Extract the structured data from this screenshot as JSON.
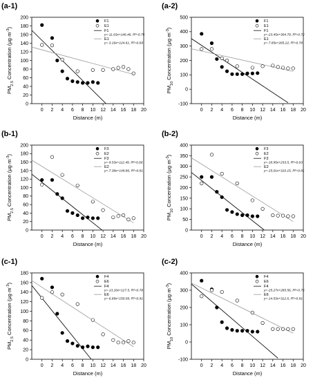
{
  "chart_data": [
    {
      "panel": "(a-1)",
      "type": "scatter",
      "xlabel": "Distance (m)",
      "ylabel": "PM2.5 Concentration (μg·m⁻³)",
      "ylabel_main": "PM",
      "ylabel_sub": "2.5",
      "ylabel_rest": " Concentration (μg·m",
      "ylabel_sup": "-3",
      "ylabel_end": ")",
      "xlim": [
        -2,
        20
      ],
      "ylim": [
        0,
        200
      ],
      "xticks": [
        0,
        2,
        4,
        6,
        8,
        10,
        12,
        14,
        16,
        18,
        20
      ],
      "yticks": [
        0,
        20,
        40,
        60,
        80,
        100,
        120,
        140,
        160,
        180,
        200
      ],
      "series": [
        {
          "name": "F1",
          "marker": "filled",
          "x": [
            0,
            2,
            3,
            4,
            5,
            6,
            7,
            8,
            9,
            10,
            11
          ],
          "y": [
            182,
            152,
            100,
            75,
            58,
            52,
            50,
            48,
            48,
            50,
            48
          ]
        },
        {
          "name": "E1",
          "marker": "open",
          "x": [
            0,
            2,
            4,
            7,
            10,
            12,
            14,
            15,
            16,
            17,
            18
          ],
          "y": [
            136,
            135,
            102,
            75,
            78,
            78,
            80,
            83,
            85,
            80,
            70
          ]
        }
      ],
      "fits": [
        {
          "name": "F1",
          "style": "solid",
          "equation": "y=-11.63x+146.46, R²=0.75",
          "slope": -11.63,
          "intercept": 146.46,
          "x_range": [
            -2,
            12.6
          ]
        },
        {
          "name": "E1",
          "style": "gray",
          "equation": "y=-3.16x+124.61, R²=0.69",
          "slope": -3.16,
          "intercept": 124.61,
          "x_range": [
            -2,
            18
          ]
        }
      ]
    },
    {
      "panel": "(a-2)",
      "type": "scatter",
      "xlabel": "Distance (m)",
      "ylabel": "PM10 Concentration (μg·m⁻³)",
      "ylabel_main": "PM",
      "ylabel_sub": "10",
      "ylabel_rest": " Concentration (μg·m",
      "ylabel_sup": "-3",
      "ylabel_end": ")",
      "xlim": [
        -2,
        20
      ],
      "ylim": [
        -100,
        500
      ],
      "xticks": [
        0,
        2,
        4,
        6,
        8,
        10,
        12,
        14,
        16,
        18,
        20
      ],
      "yticks": [
        -100,
        0,
        100,
        200,
        300,
        400,
        500
      ],
      "series": [
        {
          "name": "F1",
          "marker": "filled",
          "x": [
            0,
            2,
            3,
            4,
            5,
            6,
            7,
            8,
            9,
            10,
            11
          ],
          "y": [
            385,
            320,
            210,
            155,
            125,
            105,
            105,
            105,
            110,
            110,
            112
          ]
        },
        {
          "name": "E1",
          "marker": "open",
          "x": [
            0,
            2,
            4,
            5,
            7,
            10,
            12,
            14,
            15,
            16,
            17,
            18
          ],
          "y": [
            280,
            280,
            215,
            200,
            160,
            150,
            160,
            165,
            155,
            150,
            145,
            145
          ]
        }
      ],
      "fits": [
        {
          "name": "F1",
          "style": "solid",
          "equation": "y=-23.45x+304.79, R²=0.72",
          "slope": -23.45,
          "intercept": 304.79,
          "x_range": [
            -2,
            17
          ]
        },
        {
          "name": "E1",
          "style": "gray",
          "equation": "y=-7.85x+265.22, R²=0.78",
          "slope": -7.85,
          "intercept": 265.22,
          "x_range": [
            -2,
            18
          ]
        }
      ]
    },
    {
      "panel": "(b-1)",
      "type": "scatter",
      "xlabel": "Distance (m)",
      "ylabel": "PM2.5 Concentration (μg·m⁻³)",
      "ylabel_main": "PM",
      "ylabel_sub": "2.5",
      "ylabel_rest": " Concentration (μg·m",
      "ylabel_sup": "-3",
      "ylabel_end": ")",
      "xlim": [
        -2,
        20
      ],
      "ylim": [
        0,
        200
      ],
      "xticks": [
        0,
        2,
        4,
        6,
        8,
        10,
        12,
        14,
        16,
        18,
        20
      ],
      "yticks": [
        0,
        20,
        40,
        60,
        80,
        100,
        120,
        140,
        160,
        180,
        200
      ],
      "series": [
        {
          "name": "F3",
          "marker": "filled",
          "x": [
            0,
            2,
            3,
            4,
            5,
            6,
            7,
            8,
            9,
            10,
            11
          ],
          "y": [
            118,
            118,
            85,
            75,
            45,
            40,
            35,
            28,
            30,
            28,
            28
          ]
        },
        {
          "name": "E2",
          "marker": "open",
          "x": [
            0,
            2,
            4,
            7,
            10,
            12,
            14,
            15,
            16,
            17,
            18
          ],
          "y": [
            107,
            172,
            130,
            105,
            67,
            47,
            30,
            33,
            35,
            25,
            28
          ]
        }
      ],
      "fits": [
        {
          "name": "F3",
          "style": "solid",
          "equation": "y=-9.53x+112.49, R²=0.66",
          "slope": -9.53,
          "intercept": 112.49,
          "x_range": [
            -2,
            11.8
          ]
        },
        {
          "name": "E2",
          "style": "gray",
          "equation": "y=-7.38x+149.86, R²=0.81",
          "slope": -7.38,
          "intercept": 149.86,
          "x_range": [
            -2,
            18
          ]
        }
      ]
    },
    {
      "panel": "(b-2)",
      "type": "scatter",
      "xlabel": "Distance (m)",
      "ylabel": "PM10 Concentration (μg·m⁻³)",
      "ylabel_main": "PM",
      "ylabel_sub": "10",
      "ylabel_rest": " Concentration (μg·m",
      "ylabel_sup": "-3",
      "ylabel_end": ")",
      "xlim": [
        -2,
        20
      ],
      "ylim": [
        0,
        400
      ],
      "xticks": [
        0,
        2,
        4,
        6,
        8,
        10,
        12,
        14,
        16,
        18,
        20
      ],
      "yticks": [
        0,
        50,
        100,
        150,
        200,
        250,
        300,
        350,
        400
      ],
      "series": [
        {
          "name": "F3",
          "marker": "filled",
          "x": [
            0,
            2,
            3,
            4,
            5,
            6,
            7,
            8,
            9,
            10,
            11
          ],
          "y": [
            250,
            250,
            180,
            155,
            95,
            85,
            75,
            70,
            70,
            65,
            65
          ]
        },
        {
          "name": "E2",
          "marker": "open",
          "x": [
            0,
            2,
            4,
            7,
            10,
            12,
            14,
            15,
            16,
            17,
            18
          ],
          "y": [
            220,
            355,
            265,
            220,
            140,
            100,
            70,
            68,
            68,
            65,
            65
          ]
        }
      ],
      "fits": [
        {
          "name": "F3",
          "style": "solid",
          "equation": "y=-18.95x+233.5, R²=0.63",
          "slope": -18.95,
          "intercept": 233.5,
          "x_range": [
            -2,
            12.3
          ]
        },
        {
          "name": "E2",
          "style": "gray",
          "equation": "y=-15.01x+310.15, R²=0.81",
          "slope": -15.01,
          "intercept": 310.15,
          "x_range": [
            -2,
            18
          ]
        }
      ]
    },
    {
      "panel": "(c-1)",
      "type": "scatter",
      "xlabel": "Distance (m)",
      "ylabel": "PM2.5 Concentration (μg·m⁻³)",
      "ylabel_main": "PM",
      "ylabel_sub": "2.5",
      "ylabel_rest": " Concentration (μg·m",
      "ylabel_sup": "-3",
      "ylabel_end": ")",
      "xlim": [
        -2,
        20
      ],
      "ylim": [
        0,
        180
      ],
      "xticks": [
        0,
        2,
        4,
        6,
        8,
        10,
        12,
        14,
        16,
        18,
        20
      ],
      "yticks": [
        0,
        20,
        40,
        60,
        80,
        100,
        120,
        140,
        160,
        180
      ],
      "series": [
        {
          "name": "F4",
          "marker": "filled",
          "x": [
            0,
            2,
            3,
            4,
            5,
            6,
            7,
            8,
            9,
            10,
            11
          ],
          "y": [
            168,
            150,
            95,
            55,
            38,
            33,
            28,
            25,
            27,
            25,
            25
          ]
        },
        {
          "name": "E6",
          "marker": "open",
          "x": [
            0,
            2,
            4,
            7,
            10,
            12,
            14,
            15,
            16,
            17,
            18
          ],
          "y": [
            128,
            140,
            135,
            115,
            82,
            52,
            40,
            35,
            35,
            38,
            35
          ]
        }
      ],
      "fits": [
        {
          "name": "F4",
          "style": "solid",
          "equation": "y=-13.16x+127.5, R²=0.78",
          "slope": -13.16,
          "intercept": 127.5,
          "x_range": [
            -2,
            12.2
          ]
        },
        {
          "name": "E6",
          "style": "gray",
          "equation": "y=-6.89x+150.09, R²=0.91",
          "slope": -6.89,
          "intercept": 150.09,
          "x_range": [
            -2,
            18
          ]
        }
      ]
    },
    {
      "panel": "(c-2)",
      "type": "scatter",
      "xlabel": "Distance (m)",
      "ylabel": "PM10 Concentration (μg·m⁻³)",
      "ylabel_main": "PM",
      "ylabel_sub": "10",
      "ylabel_rest": " Concentration (μg·m",
      "ylabel_sup": "-3",
      "ylabel_end": ")",
      "xlim": [
        -2,
        20
      ],
      "ylim": [
        -100,
        400
      ],
      "xticks": [
        0,
        2,
        4,
        6,
        8,
        10,
        12,
        14,
        16,
        18,
        20
      ],
      "yticks": [
        -100,
        0,
        100,
        200,
        300,
        400
      ],
      "series": [
        {
          "name": "F4",
          "marker": "filled",
          "x": [
            0,
            2,
            3,
            4,
            5,
            6,
            7,
            8,
            9,
            10,
            11
          ],
          "y": [
            355,
            305,
            200,
            115,
            80,
            70,
            65,
            65,
            65,
            60,
            60
          ]
        },
        {
          "name": "E6",
          "marker": "open",
          "x": [
            0,
            2,
            4,
            7,
            10,
            12,
            14,
            15,
            16,
            17,
            18
          ],
          "y": [
            265,
            300,
            290,
            240,
            170,
            110,
            75,
            75,
            75,
            75,
            75
          ]
        }
      ],
      "fits": [
        {
          "name": "F4",
          "style": "solid",
          "equation": "y=-25.27x+285.56, R²=0.75",
          "slope": -25.27,
          "intercept": 285.56,
          "x_range": [
            -2,
            15
          ]
        },
        {
          "name": "E6",
          "style": "gray",
          "equation": "y=-14.53x+312.6, R²=0.91",
          "slope": -14.53,
          "intercept": 312.6,
          "x_range": [
            -2,
            18
          ]
        }
      ]
    }
  ]
}
